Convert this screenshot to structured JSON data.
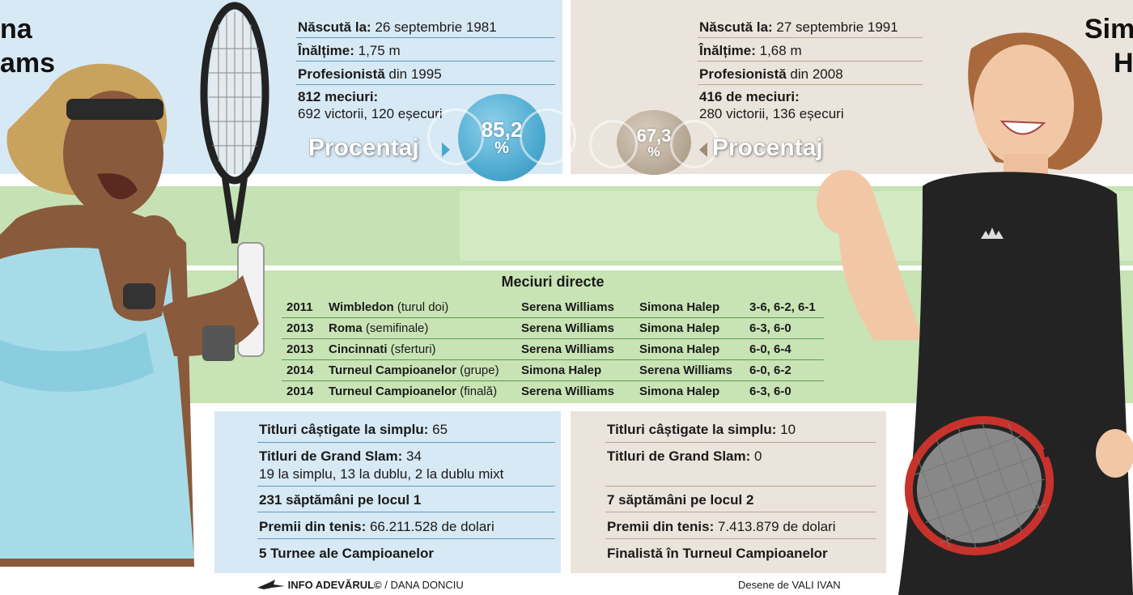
{
  "left_player": {
    "name_part_1": "na",
    "name_part_2": "ams",
    "born_label": "Născută la:",
    "born_value": " 26 septembrie 1981",
    "height_label": "Înălțime:",
    "height_value": " 1,75 m",
    "pro_label": "Profesionistă",
    "pro_value": " din 1995",
    "matches_label": "812 meciuri:",
    "matches_value": "692 victorii, 120 eșecuri",
    "percentage_label": "Procentaj",
    "percentage_value": "85,2",
    "percent_sign": "%",
    "titles_label": "Titluri câștigate la simplu:",
    "titles_value": " 65",
    "slams_label": "Titluri de Grand Slam:",
    "slams_value": " 34",
    "slams_detail": "19 la simplu, 13 la dublu, 2 la dublu mixt",
    "weeks": "231 săptămâni pe locul 1",
    "prize_label": "Premii din tenis:",
    "prize_value": " 66.211.528 de dolari",
    "finals": "5 Turnee ale Campioanelor"
  },
  "right_player": {
    "name_part_1": "Sim",
    "name_part_2": "H",
    "born_label": "Născută la:",
    "born_value": " 27 septembrie 1991",
    "height_label": "Înălțime:",
    "height_value": " 1,68 m",
    "pro_label": "Profesionistă",
    "pro_value": " din 2008",
    "matches_label": "416 de meciuri:",
    "matches_value": "280 victorii, 136 eșecuri",
    "percentage_label": "Procentaj",
    "percentage_value": "67,3",
    "percent_sign": "%",
    "titles_label": "Titluri câștigate la simplu:",
    "titles_value": " 10",
    "slams_label": "Titluri de Grand Slam:",
    "slams_value": " 0",
    "weeks": "7 săptămâni pe locul 2",
    "prize_label": "Premii din tenis:",
    "prize_value": " 7.413.879 de dolari",
    "finals": "Finalistă în Turneul Campioanelor"
  },
  "head_to_head": {
    "title": "Meciuri directe",
    "rows": [
      {
        "year": "2011",
        "tournament": "Wimbledon",
        "round": " (turul doi)",
        "winner": "Serena Williams",
        "loser": "Simona Halep",
        "score": "3-6, 6-2, 6-1"
      },
      {
        "year": "2013",
        "tournament": "Roma",
        "round": " (semifinale)",
        "winner": "Serena Williams",
        "loser": "Simona Halep",
        "score": "6-3, 6-0"
      },
      {
        "year": "2013",
        "tournament": "Cincinnati",
        "round": " (sferturi)",
        "winner": "Serena Williams",
        "loser": "Simona Halep",
        "score": "6-0, 6-4"
      },
      {
        "year": "2014",
        "tournament": "Turneul Campioanelor",
        "round": " (grupe)",
        "winner": "Simona Halep",
        "loser": "Serena Williams",
        "score": "6-0, 6-2"
      },
      {
        "year": "2014",
        "tournament": "Turneul Campioanelor",
        "round": " (finală)",
        "winner": "Serena Williams",
        "loser": "Simona Halep",
        "score": "6-3, 6-0"
      }
    ]
  },
  "credits": {
    "source": "INFO ADEVĂRUL©",
    "author": " / DANA DONCIU",
    "drawings": "Desene de VALI IVAN"
  },
  "colors": {
    "left_panel": "#d7e9f4",
    "right_panel": "#ebe4dc",
    "green_band": "#c8e4b5",
    "ball_blue": "#4aa8cf",
    "ball_beige": "#b7a895"
  }
}
